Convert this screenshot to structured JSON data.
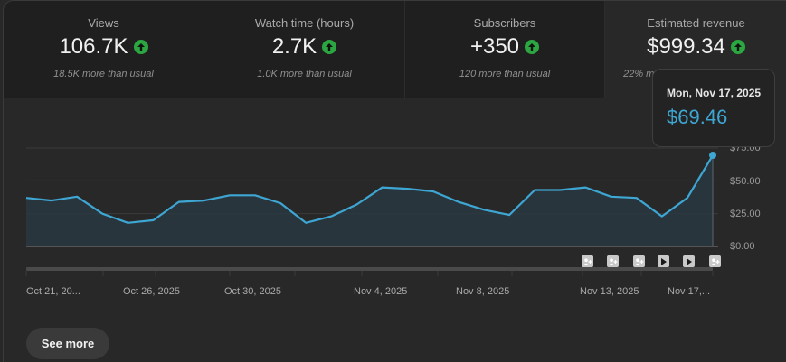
{
  "cards": [
    {
      "label": "Views",
      "value": "106.7K",
      "trend": "up",
      "sub": "18.5K more than usual"
    },
    {
      "label": "Watch time (hours)",
      "value": "2.7K",
      "trend": "up",
      "sub": "1.0K more than usual"
    },
    {
      "label": "Subscribers",
      "value": "+350",
      "trend": "up",
      "sub": "120 more than usual"
    },
    {
      "label": "Estimated revenue",
      "value": "$999.34",
      "trend": "up",
      "sub": "22% more than previous 28 days",
      "selected": true
    }
  ],
  "tooltip": {
    "date": "Mon, Nov 17, 2025",
    "value": "$69.46"
  },
  "see_more_label": "See more",
  "colors": {
    "line": "#3ea6d3",
    "trend_up": "#2ba640",
    "tooltip_value": "#3ea6d3"
  },
  "markers": [
    {
      "type": "subscriber-icon",
      "glyph": "Q+"
    },
    {
      "type": "subscriber-icon",
      "glyph": "Q+"
    },
    {
      "type": "subscriber-icon",
      "glyph": "Q+"
    },
    {
      "type": "video-play-icon",
      "glyph": "▶"
    },
    {
      "type": "video-play-icon",
      "glyph": "▶"
    },
    {
      "type": "subscriber-icon",
      "glyph": "Q+"
    }
  ],
  "chart_data": {
    "type": "area",
    "title": "Estimated revenue",
    "xlabel": "",
    "ylabel": "",
    "ylim": [
      0,
      75
    ],
    "yticks": [
      "$0.00",
      "$25.00",
      "$50.00",
      "$75.00"
    ],
    "xticks": [
      "Oct 21, 20...",
      "Oct 26, 2025",
      "Oct 30, 2025",
      "Nov 4, 2025",
      "Nov 8, 2025",
      "Nov 13, 2025",
      "Nov 17,..."
    ],
    "grid": true,
    "x": [
      "Oct 21",
      "Oct 22",
      "Oct 23",
      "Oct 24",
      "Oct 25",
      "Oct 26",
      "Oct 27",
      "Oct 28",
      "Oct 29",
      "Oct 30",
      "Oct 31",
      "Nov 1",
      "Nov 2",
      "Nov 3",
      "Nov 4",
      "Nov 5",
      "Nov 6",
      "Nov 7",
      "Nov 8",
      "Nov 9",
      "Nov 10",
      "Nov 11",
      "Nov 12",
      "Nov 13",
      "Nov 14",
      "Nov 15",
      "Nov 16",
      "Nov 17"
    ],
    "series": [
      {
        "name": "Estimated revenue",
        "values": [
          37,
          35,
          38,
          25,
          18,
          20,
          34,
          35,
          39,
          39,
          33,
          18,
          23,
          32,
          45,
          44,
          42,
          34,
          28,
          24,
          43,
          43,
          45,
          38,
          37,
          23,
          37,
          69.46
        ]
      }
    ],
    "highlight": {
      "x": "Nov 17",
      "label": "Mon, Nov 17, 2025",
      "value": 69.46
    }
  }
}
